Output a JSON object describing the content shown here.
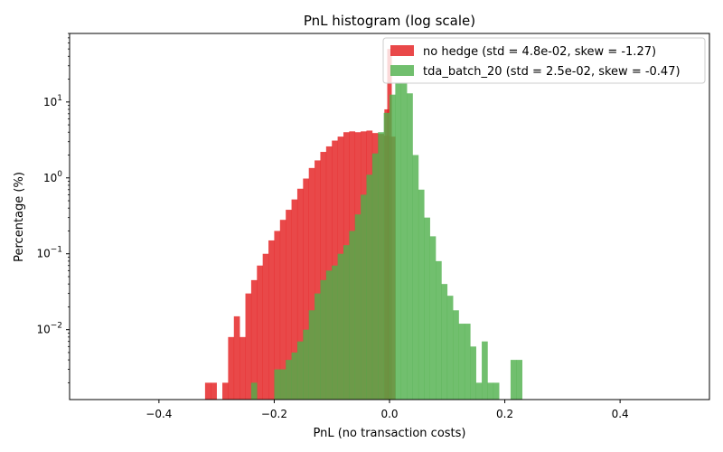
{
  "chart_data": {
    "type": "bar",
    "title": "PnL histogram (log scale)",
    "xlabel": "PnL (no transaction costs)",
    "ylabel": "Percentage (%)",
    "yscale": "log",
    "xlim": [
      -0.555,
      0.555
    ],
    "ylim": [
      0.0012,
      80
    ],
    "xticks": [
      -0.4,
      -0.2,
      0.0,
      0.2,
      0.4
    ],
    "xtick_labels": [
      "−0.4",
      "−0.2",
      "0.0",
      "0.2",
      "0.4"
    ],
    "yticks": [
      0.01,
      0.1,
      1,
      10
    ],
    "ytick_labels": [
      [
        "10",
        "−2"
      ],
      [
        "10",
        "−1"
      ],
      [
        "10",
        "0"
      ],
      [
        "10",
        "1"
      ]
    ],
    "legend_position": "top-right",
    "grid": false,
    "series": [
      {
        "name": "no hedge (std = 4.8e-02, skew = -1.27)",
        "color": "#e31a1c",
        "opacity": 0.8,
        "bin_width": 0.01,
        "bins": [
          [
            -0.32,
            0.002
          ],
          [
            -0.31,
            0.002
          ],
          [
            -0.29,
            0.002
          ],
          [
            -0.28,
            0.008
          ],
          [
            -0.27,
            0.015
          ],
          [
            -0.26,
            0.008
          ],
          [
            -0.25,
            0.03
          ],
          [
            -0.24,
            0.045
          ],
          [
            -0.23,
            0.07
          ],
          [
            -0.22,
            0.1
          ],
          [
            -0.21,
            0.15
          ],
          [
            -0.2,
            0.2
          ],
          [
            -0.19,
            0.28
          ],
          [
            -0.18,
            0.38
          ],
          [
            -0.17,
            0.52
          ],
          [
            -0.16,
            0.72
          ],
          [
            -0.15,
            0.98
          ],
          [
            -0.14,
            1.35
          ],
          [
            -0.13,
            1.7
          ],
          [
            -0.12,
            2.2
          ],
          [
            -0.11,
            2.6
          ],
          [
            -0.1,
            3.1
          ],
          [
            -0.09,
            3.5
          ],
          [
            -0.08,
            4.0
          ],
          [
            -0.07,
            4.1
          ],
          [
            -0.06,
            4.0
          ],
          [
            -0.05,
            4.1
          ],
          [
            -0.04,
            4.2
          ],
          [
            -0.03,
            3.9
          ],
          [
            -0.02,
            3.8
          ],
          [
            -0.01,
            3.6
          ],
          [
            0.0,
            3.5
          ]
        ],
        "spikes": [
          [
            -0.005,
            8.0
          ],
          [
            0.0,
            50.0
          ]
        ]
      },
      {
        "name": "tda_batch_20 (std = 2.5e-02, skew = -0.47)",
        "color": "#4daf4a",
        "opacity": 0.8,
        "bin_width": 0.01,
        "bins": [
          [
            -0.24,
            0.002
          ],
          [
            -0.2,
            0.003
          ],
          [
            -0.19,
            0.003
          ],
          [
            -0.18,
            0.004
          ],
          [
            -0.17,
            0.005
          ],
          [
            -0.16,
            0.007
          ],
          [
            -0.15,
            0.01
          ],
          [
            -0.14,
            0.018
          ],
          [
            -0.13,
            0.03
          ],
          [
            -0.12,
            0.045
          ],
          [
            -0.11,
            0.06
          ],
          [
            -0.1,
            0.07
          ],
          [
            -0.09,
            0.1
          ],
          [
            -0.08,
            0.13
          ],
          [
            -0.07,
            0.2
          ],
          [
            -0.06,
            0.33
          ],
          [
            -0.05,
            0.6
          ],
          [
            -0.04,
            1.1
          ],
          [
            -0.03,
            2.1
          ],
          [
            -0.02,
            4.0
          ],
          [
            -0.01,
            7.2
          ],
          [
            0.0,
            12.5
          ],
          [
            0.01,
            18.0
          ],
          [
            0.02,
            18.0
          ],
          [
            0.03,
            13.0
          ],
          [
            0.04,
            2.0
          ],
          [
            0.05,
            0.7
          ],
          [
            0.06,
            0.3
          ],
          [
            0.07,
            0.17
          ],
          [
            0.08,
            0.08
          ],
          [
            0.09,
            0.04
          ],
          [
            0.1,
            0.028
          ],
          [
            0.11,
            0.018
          ],
          [
            0.12,
            0.012
          ],
          [
            0.13,
            0.012
          ],
          [
            0.14,
            0.006
          ],
          [
            0.15,
            0.002
          ],
          [
            0.16,
            0.007
          ],
          [
            0.17,
            0.002
          ],
          [
            0.18,
            0.002
          ],
          [
            0.21,
            0.004
          ],
          [
            0.22,
            0.004
          ]
        ]
      }
    ]
  }
}
